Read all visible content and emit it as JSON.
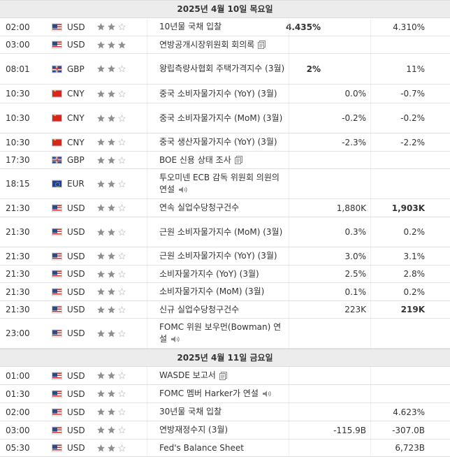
{
  "colors": {
    "header_bg": "#ececec",
    "star_on": "#8f8f8f",
    "star_off": "#c8c8c8"
  },
  "icon_names": {
    "document": "document-icon",
    "speaker": "speaker-icon"
  },
  "days": [
    {
      "label": "2025년 4월 10일 목요일",
      "rows": [
        {
          "time": "02:00",
          "flag": "us",
          "currency": "USD",
          "stars": 2,
          "event": "10년물 국채 입찰",
          "actual": "4.435%",
          "forecast": "",
          "previous": "4.310%",
          "prev_bold": false,
          "icon": "",
          "h": 26
        },
        {
          "time": "03:00",
          "flag": "us",
          "currency": "USD",
          "stars": 3,
          "event": "연방공개시장위원회 회의록",
          "actual": "",
          "forecast": "",
          "previous": "",
          "prev_bold": false,
          "icon": "document",
          "h": 25
        },
        {
          "time": "08:01",
          "flag": "gb",
          "currency": "GBP",
          "stars": 2,
          "event": "왕립측량사협회 주택가격지수 (3월)",
          "actual": "2%",
          "forecast": "",
          "previous": "11%",
          "prev_bold": false,
          "icon": "",
          "h": 44
        },
        {
          "time": "10:30",
          "flag": "cn",
          "currency": "CNY",
          "stars": 2,
          "event": "중국 소비자물가지수 (YoY) (3월)",
          "actual": "",
          "forecast": "0.0%",
          "previous": "-0.7%",
          "prev_bold": false,
          "icon": "",
          "h": 27
        },
        {
          "time": "10:30",
          "flag": "cn",
          "currency": "CNY",
          "stars": 2,
          "event": "중국 소비자물가지수 (MoM) (3월)",
          "actual": "",
          "forecast": "-0.2%",
          "previous": "-0.2%",
          "prev_bold": false,
          "icon": "",
          "h": 43
        },
        {
          "time": "10:30",
          "flag": "cn",
          "currency": "CNY",
          "stars": 2,
          "event": "중국 생산자물가지수 (YoY) (3월)",
          "actual": "",
          "forecast": "-2.3%",
          "previous": "-2.2%",
          "prev_bold": false,
          "icon": "",
          "h": 26
        },
        {
          "time": "17:30",
          "flag": "gb",
          "currency": "GBP",
          "stars": 2,
          "event": "BOE 신용 상태 조사",
          "actual": "",
          "forecast": "",
          "previous": "",
          "prev_bold": false,
          "icon": "document",
          "h": 25
        },
        {
          "time": "18:15",
          "flag": "eu",
          "currency": "EUR",
          "stars": 2,
          "event": "투오미넨 ECB 감독 위원회 의원의 연설",
          "actual": "",
          "forecast": "",
          "previous": "",
          "prev_bold": false,
          "icon": "speaker",
          "h": 43
        },
        {
          "time": "21:30",
          "flag": "us",
          "currency": "USD",
          "stars": 2,
          "event": "연속 실업수당청구건수",
          "actual": "",
          "forecast": "1,880K",
          "previous": "1,903K",
          "prev_bold": true,
          "icon": "",
          "h": 26
        },
        {
          "time": "21:30",
          "flag": "us",
          "currency": "USD",
          "stars": 2,
          "event": "근원 소비자물가지수 (MoM) (3월)",
          "actual": "",
          "forecast": "0.3%",
          "previous": "0.2%",
          "prev_bold": false,
          "icon": "",
          "h": 43
        },
        {
          "time": "21:30",
          "flag": "us",
          "currency": "USD",
          "stars": 2,
          "event": "근원 소비자물가지수 (YoY) (3월)",
          "actual": "",
          "forecast": "3.0%",
          "previous": "3.1%",
          "prev_bold": false,
          "icon": "",
          "h": 26
        },
        {
          "time": "21:30",
          "flag": "us",
          "currency": "USD",
          "stars": 2,
          "event": "소비자물가지수 (YoY) (3월)",
          "actual": "",
          "forecast": "2.5%",
          "previous": "2.8%",
          "prev_bold": false,
          "icon": "",
          "h": 25
        },
        {
          "time": "21:30",
          "flag": "us",
          "currency": "USD",
          "stars": 2,
          "event": "소비자물가지수 (MoM) (3월)",
          "actual": "",
          "forecast": "0.1%",
          "previous": "0.2%",
          "prev_bold": false,
          "icon": "",
          "h": 26
        },
        {
          "time": "21:30",
          "flag": "us",
          "currency": "USD",
          "stars": 2,
          "event": "신규 실업수당청구건수",
          "actual": "",
          "forecast": "223K",
          "previous": "219K",
          "prev_bold": true,
          "icon": "",
          "h": 25
        },
        {
          "time": "23:00",
          "flag": "us",
          "currency": "USD",
          "stars": 2,
          "event": "FOMC 위원 보우먼(Bowman) 연설",
          "actual": "",
          "forecast": "",
          "previous": "",
          "prev_bold": false,
          "icon": "speaker",
          "h": 43
        }
      ]
    },
    {
      "label": "2025년 4월 11일 금요일",
      "rows": [
        {
          "time": "01:00",
          "flag": "us",
          "currency": "USD",
          "stars": 2,
          "event": "WASDE 보고서",
          "actual": "",
          "forecast": "",
          "previous": "",
          "prev_bold": false,
          "icon": "document",
          "h": 26
        },
        {
          "time": "01:30",
          "flag": "us",
          "currency": "USD",
          "stars": 2,
          "event": "FOMC 멤버 Harker가 연설",
          "actual": "",
          "forecast": "",
          "previous": "",
          "prev_bold": false,
          "icon": "speaker",
          "h": 26
        },
        {
          "time": "02:00",
          "flag": "us",
          "currency": "USD",
          "stars": 2,
          "event": "30년물 국채 입찰",
          "actual": "",
          "forecast": "",
          "previous": "4.623%",
          "prev_bold": false,
          "icon": "",
          "h": 26
        },
        {
          "time": "03:00",
          "flag": "us",
          "currency": "USD",
          "stars": 2,
          "event": "연방재정수지 (3월)",
          "actual": "",
          "forecast": "-115.9B",
          "previous": "-307.0B",
          "prev_bold": false,
          "icon": "",
          "h": 26
        },
        {
          "time": "05:30",
          "flag": "us",
          "currency": "USD",
          "stars": 2,
          "event": "Fed's Balance Sheet",
          "actual": "",
          "forecast": "",
          "previous": "6,723B",
          "prev_bold": false,
          "icon": "",
          "h": 25
        }
      ]
    }
  ]
}
